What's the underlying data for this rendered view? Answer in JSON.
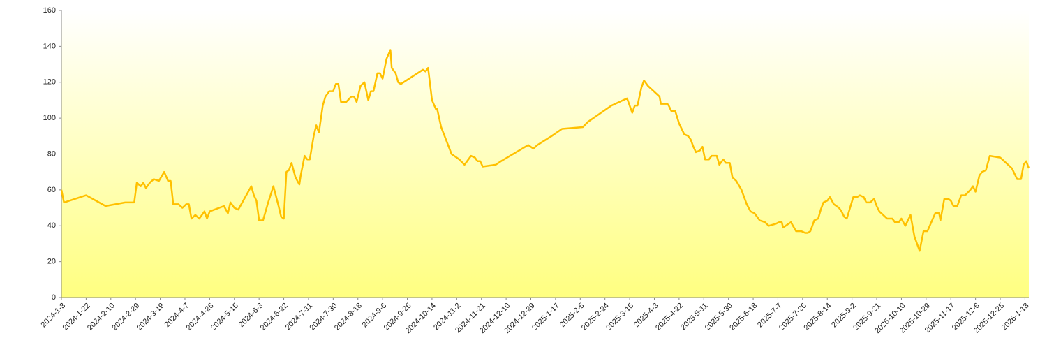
{
  "chart_data": {
    "type": "line",
    "color": "#ffc000",
    "x": [
      "2024-1-3",
      "2024-1-5",
      "2024-1-22",
      "2024-2-6",
      "2024-2-21",
      "2024-2-28",
      "2024-3-1",
      "2024-3-4",
      "2024-3-6",
      "2024-3-8",
      "2024-3-11",
      "2024-3-14",
      "2024-3-18",
      "2024-3-22",
      "2024-3-25",
      "2024-3-27",
      "2024-3-29",
      "2024-4-2",
      "2024-4-5",
      "2024-4-8",
      "2024-4-10",
      "2024-4-12",
      "2024-4-15",
      "2024-4-18",
      "2024-4-22",
      "2024-4-24",
      "2024-4-26",
      "2024-5-7",
      "2024-5-10",
      "2024-5-12",
      "2024-5-15",
      "2024-5-18",
      "2024-5-28",
      "2024-5-30",
      "2024-6-1",
      "2024-6-3",
      "2024-6-6",
      "2024-6-10",
      "2024-6-14",
      "2024-6-18",
      "2024-6-20",
      "2024-6-22",
      "2024-6-24",
      "2024-6-26",
      "2024-6-28",
      "2024-7-1",
      "2024-7-4",
      "2024-7-5",
      "2024-7-8",
      "2024-7-10",
      "2024-7-12",
      "2024-7-15",
      "2024-7-17",
      "2024-7-19",
      "2024-7-22",
      "2024-7-24",
      "2024-7-27",
      "2024-7-30",
      "2024-8-1",
      "2024-8-3",
      "2024-8-5",
      "2024-8-9",
      "2024-8-13",
      "2024-8-15",
      "2024-8-17",
      "2024-8-20",
      "2024-8-23",
      "2024-8-26",
      "2024-8-28",
      "2024-8-30",
      "2024-9-2",
      "2024-9-4",
      "2024-9-6",
      "2024-9-9",
      "2024-9-12",
      "2024-9-13",
      "2024-9-16",
      "2024-9-18",
      "2024-9-20",
      "2024-10-7",
      "2024-10-9",
      "2024-10-11",
      "2024-10-14",
      "2024-10-17",
      "2024-10-18",
      "2024-10-21",
      "2024-10-29",
      "2024-10-31",
      "2024-11-4",
      "2024-11-8",
      "2024-11-13",
      "2024-11-16",
      "2024-11-18",
      "2024-11-20",
      "2024-11-22",
      "2024-12-2",
      "2024-12-6",
      "2024-12-27",
      "2024-12-31",
      "2025-1-3",
      "2025-1-14",
      "2025-1-22",
      "2025-2-7",
      "2025-2-11",
      "2025-3-1",
      "2025-3-13",
      "2025-3-17",
      "2025-3-19",
      "2025-3-21",
      "2025-3-24",
      "2025-3-26",
      "2025-3-29",
      "2025-4-7",
      "2025-4-8",
      "2025-4-13",
      "2025-4-14",
      "2025-4-16",
      "2025-4-19",
      "2025-4-22",
      "2025-4-26",
      "2025-4-29",
      "2025-5-1",
      "2025-5-3",
      "2025-5-5",
      "2025-5-8",
      "2025-5-10",
      "2025-5-12",
      "2025-5-15",
      "2025-5-17",
      "2025-5-21",
      "2025-5-23",
      "2025-5-26",
      "2025-5-28",
      "2025-5-31",
      "2025-6-2",
      "2025-6-5",
      "2025-6-9",
      "2025-6-13",
      "2025-6-16",
      "2025-6-19",
      "2025-6-23",
      "2025-6-27",
      "2025-6-30",
      "2025-7-5",
      "2025-7-8",
      "2025-7-10",
      "2025-7-11",
      "2025-7-17",
      "2025-7-21",
      "2025-7-25",
      "2025-7-28",
      "2025-7-30",
      "2025-8-1",
      "2025-8-4",
      "2025-8-7",
      "2025-8-9",
      "2025-8-11",
      "2025-8-14",
      "2025-8-16",
      "2025-8-19",
      "2025-8-23",
      "2025-8-25",
      "2025-8-27",
      "2025-8-29",
      "2025-9-3",
      "2025-9-6",
      "2025-9-8",
      "2025-9-11",
      "2025-9-13",
      "2025-9-16",
      "2025-9-19",
      "2025-9-21",
      "2025-9-23",
      "2025-9-26",
      "2025-9-29",
      "2025-10-3",
      "2025-10-5",
      "2025-10-8",
      "2025-10-10",
      "2025-10-13",
      "2025-10-17",
      "2025-10-20",
      "2025-10-24",
      "2025-10-27",
      "2025-10-30",
      "2025-11-2",
      "2025-11-5",
      "2025-11-8",
      "2025-11-9",
      "2025-11-12",
      "2025-11-15",
      "2025-11-17",
      "2025-11-19",
      "2025-11-22",
      "2025-11-25",
      "2025-11-28",
      "2025-12-2",
      "2025-12-4",
      "2025-12-6",
      "2025-12-9",
      "2025-12-11",
      "2025-12-14",
      "2025-12-17",
      "2025-12-25",
      "2026-1-3",
      "2026-1-7",
      "2026-1-10",
      "2026-1-12",
      "2026-1-14",
      "2026-1-16"
    ],
    "values": [
      60,
      53,
      57,
      51,
      53,
      53,
      64,
      62,
      64,
      61,
      64,
      66,
      65,
      70,
      65,
      65,
      52,
      52,
      50,
      52,
      52,
      44,
      46,
      44,
      48,
      44,
      48,
      51,
      47,
      53,
      50,
      49,
      62,
      57,
      54,
      43,
      43,
      53,
      62,
      51,
      45,
      44,
      70,
      71,
      75,
      67,
      63,
      68,
      79,
      77,
      77,
      90,
      96,
      92,
      107,
      112,
      115,
      115,
      119,
      119,
      109,
      109,
      112,
      112,
      109,
      118,
      120,
      110,
      115,
      115,
      125,
      125,
      122,
      133,
      138,
      128,
      125,
      120,
      119,
      127,
      126,
      128,
      110,
      105,
      105,
      95,
      80,
      79,
      77,
      74,
      79,
      78,
      76,
      76,
      73,
      74,
      76,
      85,
      83,
      85,
      90,
      94,
      95,
      98,
      107,
      111,
      103,
      107,
      107,
      117,
      121,
      118,
      112,
      108,
      108,
      107,
      104,
      104,
      97,
      91,
      90,
      88,
      84,
      81,
      82,
      84,
      77,
      77,
      79,
      79,
      74,
      77,
      75,
      75,
      67,
      65,
      60,
      52,
      48,
      47,
      43,
      42,
      40,
      41,
      42,
      42,
      39,
      42,
      37,
      37,
      36,
      36,
      37,
      43,
      44,
      49,
      53,
      54,
      56,
      52,
      50,
      48,
      45,
      44,
      56,
      56,
      57,
      56,
      53,
      53,
      55,
      51,
      48,
      46,
      44,
      44,
      42,
      42,
      44,
      40,
      46,
      34,
      26,
      37,
      37,
      42,
      47,
      47,
      43,
      55,
      55,
      54,
      51,
      51,
      57,
      57,
      60,
      62,
      59,
      68,
      70,
      71,
      79,
      78,
      72,
      66,
      66,
      74,
      76,
      72
    ],
    "xlim": [
      "2024-1-3",
      "2026-1-16"
    ],
    "xticks": [
      "2024-1-3",
      "2024-1-22",
      "2024-2-10",
      "2024-2-29",
      "2024-3-19",
      "2024-4-7",
      "2024-4-26",
      "2024-5-15",
      "2024-6-3",
      "2024-6-22",
      "2024-7-11",
      "2024-7-30",
      "2024-8-18",
      "2024-9-6",
      "2024-9-25",
      "2024-10-14",
      "2024-11-2",
      "2024-11-21",
      "2024-12-10",
      "2024-12-29",
      "2025-1-17",
      "2025-2-5",
      "2025-2-24",
      "2025-3-15",
      "2025-4-3",
      "2025-4-22",
      "2025-5-11",
      "2025-5-30",
      "2025-6-18",
      "2025-7-7",
      "2025-7-26",
      "2025-8-14",
      "2025-9-2",
      "2025-9-21",
      "2025-10-10",
      "2025-10-29",
      "2025-11-17",
      "2025-12-6",
      "2025-12-25",
      "2026-1-13"
    ],
    "ylim": [
      0,
      160
    ],
    "yticks": [
      0,
      20,
      40,
      60,
      80,
      100,
      120,
      140,
      160
    ]
  }
}
